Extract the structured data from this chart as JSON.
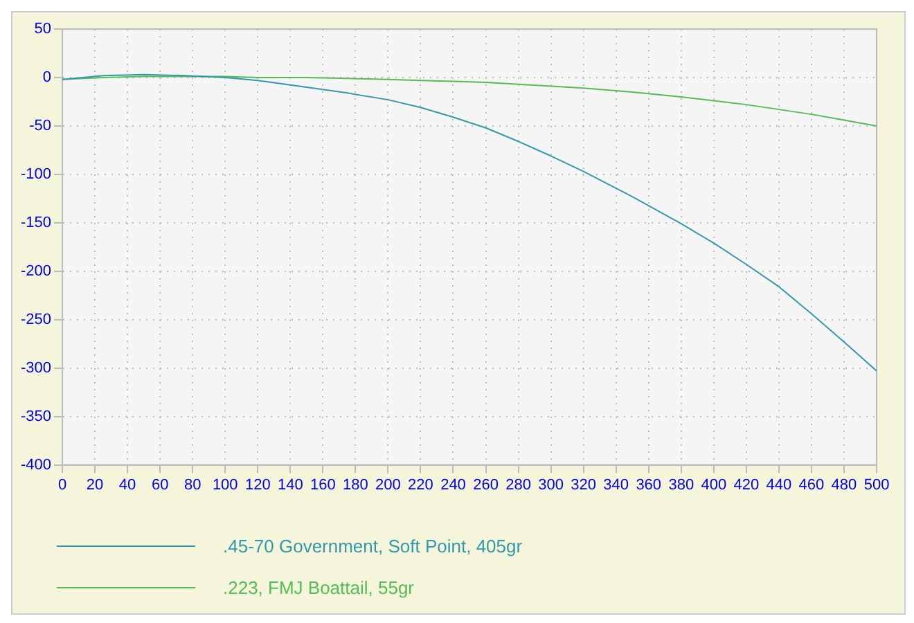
{
  "chart_data": {
    "type": "line",
    "x": [
      0,
      25,
      50,
      75,
      100,
      120,
      150,
      175,
      200,
      220,
      240,
      260,
      280,
      300,
      320,
      350,
      380,
      400,
      420,
      440,
      460,
      480,
      500
    ],
    "series": [
      {
        "name": ".45-70 Government, Soft Point, 405gr",
        "color": "#3399aa",
        "values": [
          -2,
          2,
          3,
          2,
          0,
          -3,
          -10,
          -16,
          -23,
          -31,
          -41,
          -52,
          -66,
          -81,
          -97,
          -123,
          -151,
          -171,
          -193,
          -216,
          -244,
          -273,
          -303
        ]
      },
      {
        "name": ".223, FMJ Boattail, 55gr",
        "color": "#55bb55",
        "values": [
          -2,
          0,
          1,
          1,
          1,
          0,
          0,
          -1,
          -2,
          -3,
          -4,
          -5,
          -7,
          -9,
          -11,
          -15,
          -20,
          -24,
          -28,
          -33,
          -38,
          -44,
          -50
        ]
      }
    ],
    "xlim": [
      0,
      500
    ],
    "xticks": [
      0,
      20,
      40,
      60,
      80,
      100,
      120,
      140,
      160,
      180,
      200,
      220,
      240,
      260,
      280,
      300,
      320,
      340,
      360,
      380,
      400,
      420,
      440,
      460,
      480,
      500
    ],
    "ylim": [
      -400,
      50
    ],
    "yticks": [
      -400,
      -350,
      -300,
      -250,
      -200,
      -150,
      -100,
      -50,
      0,
      50
    ],
    "grid": true,
    "legend": "bottom",
    "marker": "none",
    "line_style": "solid"
  }
}
